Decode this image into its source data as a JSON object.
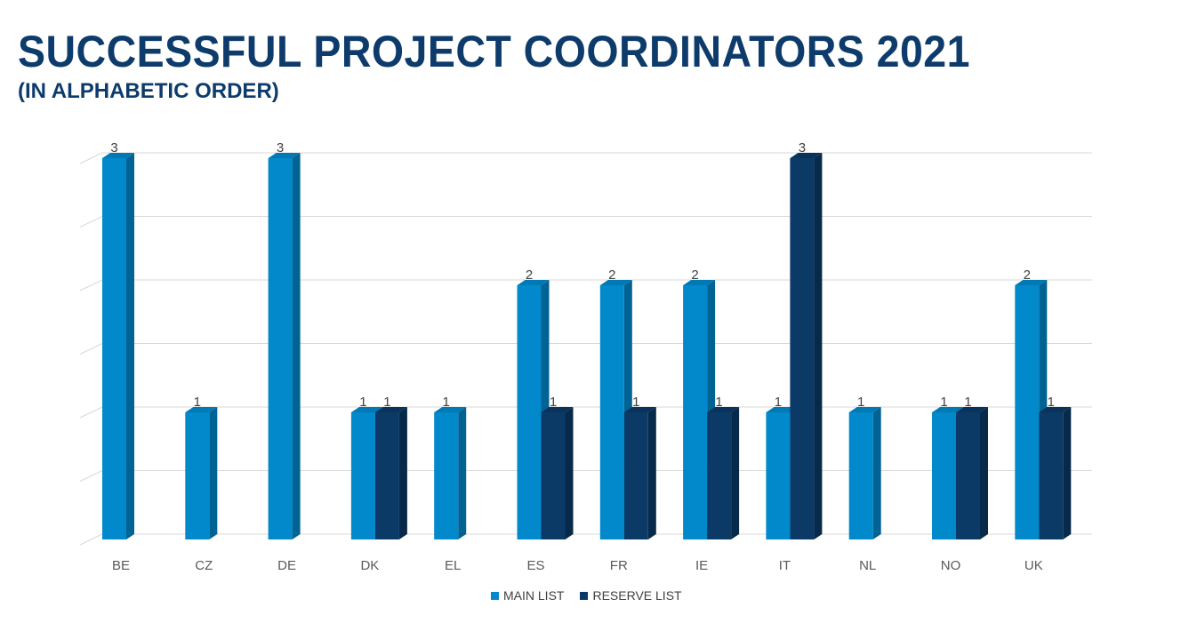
{
  "title": "SUCCESSFUL PROJECT COORDINATORS 2021",
  "subtitle": "(IN ALPHABETIC ORDER)",
  "colors": {
    "main_list": "#0189cc",
    "reserve_list": "#0b3a67",
    "title": "#0d3b6b"
  },
  "chart_data": {
    "type": "bar",
    "categories": [
      "BE",
      "CZ",
      "DE",
      "DK",
      "EL",
      "ES",
      "FR",
      "IE",
      "IT",
      "NL",
      "NO",
      "UK"
    ],
    "series": [
      {
        "name": "MAIN LIST",
        "values": [
          3,
          1,
          3,
          1,
          1,
          2,
          2,
          2,
          1,
          1,
          1,
          2
        ]
      },
      {
        "name": "RESERVE LIST",
        "values": [
          null,
          null,
          null,
          1,
          null,
          1,
          1,
          1,
          3,
          null,
          1,
          1
        ]
      }
    ],
    "ylim": [
      0,
      3
    ],
    "grid": true,
    "legend": "bottom",
    "data_labels": true,
    "style": "3d-clustered-columns"
  }
}
